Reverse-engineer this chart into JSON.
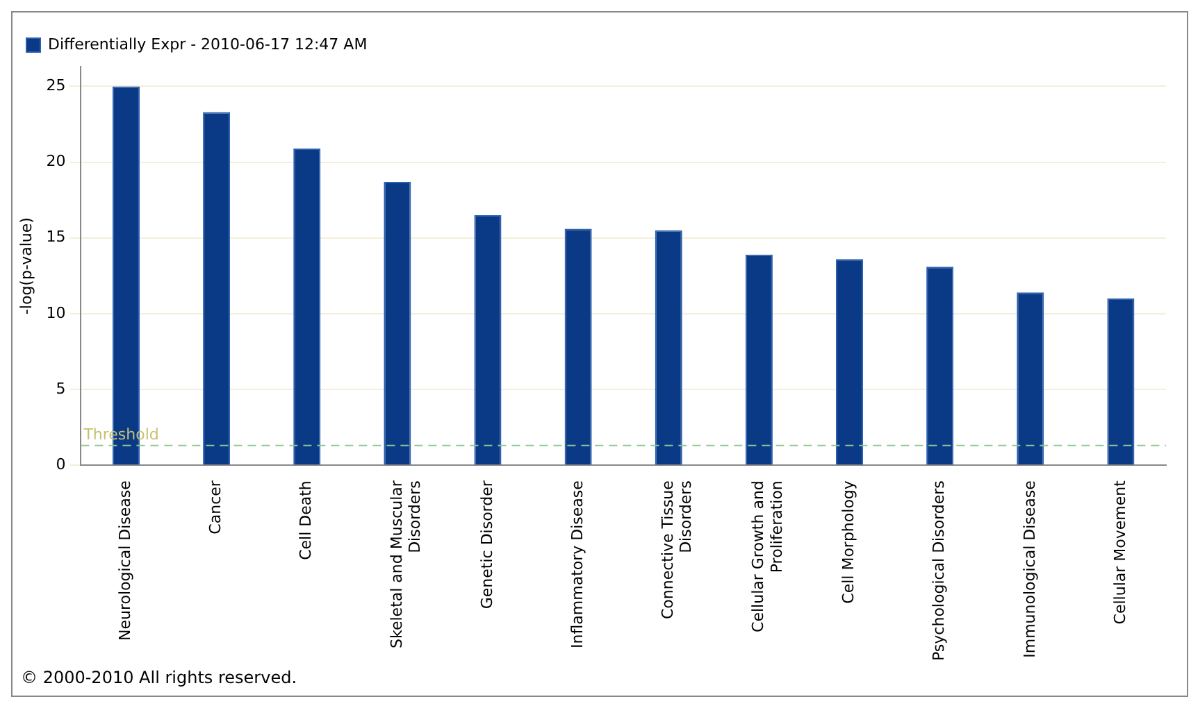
{
  "chart_data": {
    "type": "bar",
    "ylabel": "-log(p-value)",
    "categories": [
      "Neurological Disease",
      "Cancer",
      "Cell Death",
      "Skeletal and Muscular Disorders",
      "Genetic Disorder",
      "Inflammatory Disease",
      "Connective Tissue Disorders",
      "Cellular Growth and Proliferation",
      "Cell Morphology",
      "Psychological Disorders",
      "Immunological Disease",
      "Cellular Movement"
    ],
    "series": [
      {
        "name": "Differentially Expr - 2010-06-17 12:47 AM",
        "color": "#0a3a86",
        "values": [
          25.0,
          23.3,
          20.9,
          18.7,
          16.5,
          15.6,
          15.5,
          13.9,
          13.6,
          13.1,
          11.4,
          11.0
        ]
      }
    ],
    "ylim": [
      0,
      26.3
    ],
    "yticks": [
      0,
      5,
      10,
      15,
      20,
      25
    ],
    "grid": "y",
    "legend": "top left",
    "ref_lines": [
      {
        "axis": "y",
        "value": 1.3,
        "label": "Threshold",
        "color": "#8fc98f",
        "line_style": "dashed"
      }
    ],
    "annotations": [
      "© 2000-2010 All rights reserved."
    ]
  }
}
